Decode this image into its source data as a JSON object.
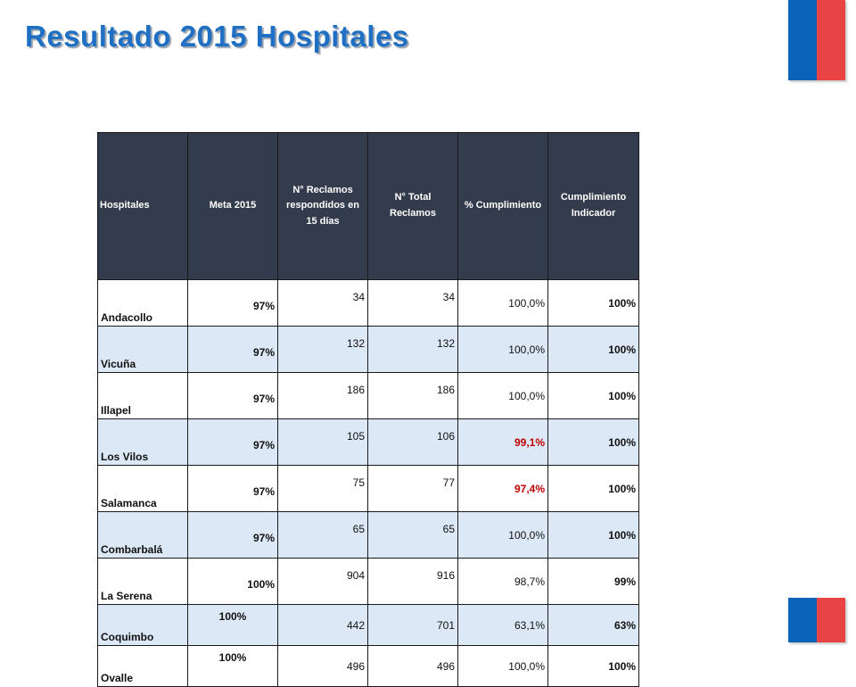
{
  "title": "Resultado 2015 Hospitales",
  "colors": {
    "title": "#1f6fc4",
    "header_bg": "#333c4c",
    "alt_row": "#dce8f5",
    "warning_text": "#c00000",
    "flag_blue": "#0a63b8",
    "flag_red": "#ea4346"
  },
  "table": {
    "headers": [
      "Hospitales",
      "Meta 2015",
      "N° Reclamos respondidos en 15 días",
      "N° Total Reclamos",
      "% Cumplimiento",
      "Cumplimiento Indicador"
    ],
    "rows": [
      {
        "hospital": "Andacollo",
        "meta": "97%",
        "respondidos": "34",
        "total": "34",
        "cumplimiento": "100,0%",
        "indicador": "100%"
      },
      {
        "hospital": "Vicuña",
        "meta": "97%",
        "respondidos": "132",
        "total": "132",
        "cumplimiento": "100,0%",
        "indicador": "100%"
      },
      {
        "hospital": "Illapel",
        "meta": "97%",
        "respondidos": "186",
        "total": "186",
        "cumplimiento": "100,0%",
        "indicador": "100%"
      },
      {
        "hospital": "Los Vilos",
        "meta": "97%",
        "respondidos": "105",
        "total": "106",
        "cumplimiento": "99,1%",
        "indicador": "100%"
      },
      {
        "hospital": "Salamanca",
        "meta": "97%",
        "respondidos": "75",
        "total": "77",
        "cumplimiento": "97,4%",
        "indicador": "100%"
      },
      {
        "hospital": "Combarbalá",
        "meta": "97%",
        "respondidos": "65",
        "total": "65",
        "cumplimiento": "100,0%",
        "indicador": "100%"
      },
      {
        "hospital": "La Serena",
        "meta": "100%",
        "respondidos": "904",
        "total": "916",
        "cumplimiento": "98,7%",
        "indicador": "99%"
      },
      {
        "hospital": "Coquimbo",
        "meta": "100%",
        "respondidos": "442",
        "total": "701",
        "cumplimiento": "63,1%",
        "indicador": "63%"
      },
      {
        "hospital": "Ovalle",
        "meta": "100%",
        "respondidos": "496",
        "total": "496",
        "cumplimiento": "100,0%",
        "indicador": "100%"
      }
    ]
  }
}
